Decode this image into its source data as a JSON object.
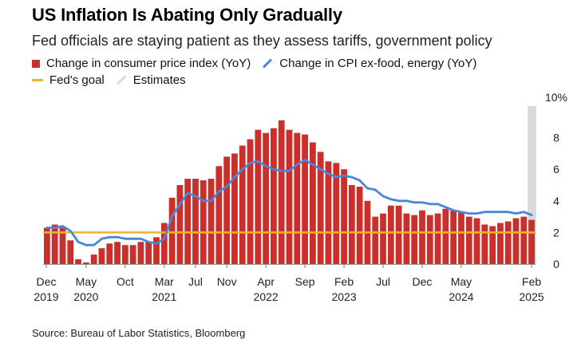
{
  "header": {
    "title": "US Inflation Is Abating Only Gradually",
    "subtitle": "Fed officials are staying patient as they assess tariffs, government policy"
  },
  "legend": {
    "cpi": "Change in consumer price index (YoY)",
    "core": "Change in CPI ex-food, energy (YoY)",
    "goal": "Fed's goal",
    "estimates": "Estimates"
  },
  "source": "Source: Bureau of Labor Statistics, Bloomberg",
  "colors": {
    "bar": "#c9302c",
    "core": "#4a86d8",
    "goal": "#e8b82a",
    "estimates": "#d9d9d9"
  },
  "chart_data": {
    "type": "bar",
    "start_month": "Dec 2019",
    "title": "US Inflation Is Abating Only Gradually",
    "ylim": [
      0,
      10
    ],
    "ytick_labels": [
      "10%",
      "8",
      "6",
      "4",
      "2",
      "0"
    ],
    "yticks": [
      10,
      8,
      6,
      4,
      2,
      0
    ],
    "xtick_labels": [
      {
        "month": "Dec",
        "year": "2019"
      },
      {
        "month": "May",
        "year": "2020"
      },
      {
        "month": "Oct",
        "year": ""
      },
      {
        "month": "Mar",
        "year": "2021"
      },
      {
        "month": "Jul",
        "year": ""
      },
      {
        "month": "Nov",
        "year": ""
      },
      {
        "month": "Apr",
        "year": "2022"
      },
      {
        "month": "Sep",
        "year": ""
      },
      {
        "month": "Feb",
        "year": "2023"
      },
      {
        "month": "Jul",
        "year": ""
      },
      {
        "month": "Dec",
        "year": ""
      },
      {
        "month": "May",
        "year": "2024"
      },
      {
        "month": "Feb",
        "year": "2025"
      }
    ],
    "xtick_index": [
      0,
      5,
      10,
      15,
      19,
      23,
      28,
      33,
      38,
      43,
      48,
      53,
      62
    ],
    "cpi_yoy": [
      2.3,
      2.5,
      2.3,
      1.5,
      0.3,
      0.1,
      0.6,
      1.0,
      1.3,
      1.4,
      1.2,
      1.2,
      1.4,
      1.4,
      1.7,
      2.6,
      4.2,
      5.0,
      5.4,
      5.4,
      5.3,
      5.4,
      6.2,
      6.8,
      7.0,
      7.5,
      7.9,
      8.5,
      8.3,
      8.6,
      9.1,
      8.5,
      8.3,
      8.2,
      7.7,
      7.1,
      6.5,
      6.4,
      6.0,
      5.0,
      4.9,
      4.0,
      3.0,
      3.2,
      3.7,
      3.7,
      3.2,
      3.1,
      3.4,
      3.1,
      3.2,
      3.5,
      3.4,
      3.3,
      3.0,
      2.9,
      2.5,
      2.4,
      2.6,
      2.7,
      2.9,
      3.0,
      2.8
    ],
    "core_cpi_yoy": [
      2.3,
      2.3,
      2.4,
      2.1,
      1.4,
      1.2,
      1.2,
      1.6,
      1.7,
      1.7,
      1.6,
      1.6,
      1.6,
      1.4,
      1.3,
      1.6,
      3.0,
      3.8,
      4.5,
      4.3,
      4.0,
      4.0,
      4.6,
      4.9,
      5.5,
      6.0,
      6.4,
      6.5,
      6.2,
      6.0,
      5.9,
      5.9,
      6.3,
      6.6,
      6.3,
      6.0,
      5.7,
      5.5,
      5.6,
      5.5,
      5.3,
      4.8,
      4.7,
      4.3,
      4.1,
      4.0,
      4.0,
      3.9,
      3.9,
      3.8,
      3.8,
      3.6,
      3.4,
      3.3,
      3.2,
      3.2,
      3.3,
      3.3,
      3.3,
      3.3,
      3.2,
      3.3,
      3.1
    ],
    "fed_goal": 2,
    "estimates_from_index": 62
  }
}
